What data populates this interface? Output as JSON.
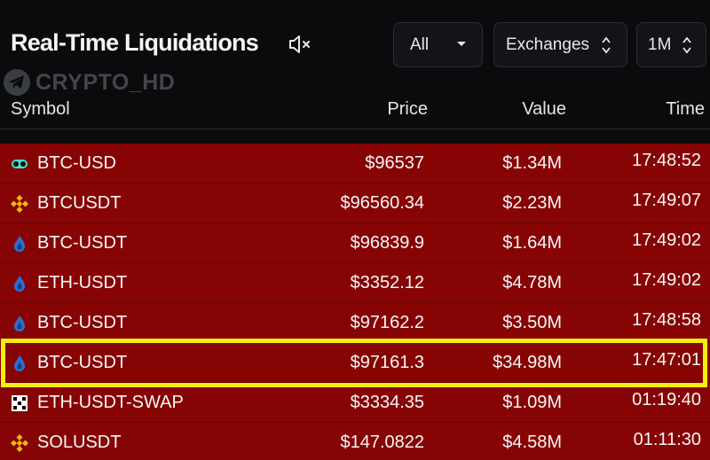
{
  "header": {
    "title": "Real-Time Liquidations",
    "mute_icon": "speaker-muted-icon",
    "watermark": "CRYPTO_HD"
  },
  "filters": {
    "side": {
      "selected": "All",
      "icon": "chevron-down-icon"
    },
    "exchange": {
      "selected": "Exchanges",
      "icon": "up-down-chevron-icon"
    },
    "period": {
      "selected": "1M",
      "icon": "up-down-chevron-icon"
    }
  },
  "columns": {
    "symbol": "Symbol",
    "price": "Price",
    "value": "Value",
    "time": "Time"
  },
  "colors": {
    "row_bg": "#870404",
    "highlight": "#f4ee14",
    "background": "#0b0b0d"
  },
  "rows": [
    {
      "icon": "bitmex-icon",
      "symbol": "BTC-USD",
      "price": "$96537",
      "value": "$1.34M",
      "time": "17:48:52"
    },
    {
      "icon": "binance-icon",
      "symbol": "BTCUSDT",
      "price": "$96560.34",
      "value": "$2.23M",
      "time": "17:49:07"
    },
    {
      "icon": "huobi-icon",
      "symbol": "BTC-USDT",
      "price": "$96839.9",
      "value": "$1.64M",
      "time": "17:49:02"
    },
    {
      "icon": "huobi-icon",
      "symbol": "ETH-USDT",
      "price": "$3352.12",
      "value": "$4.78M",
      "time": "17:49:02"
    },
    {
      "icon": "huobi-icon",
      "symbol": "BTC-USDT",
      "price": "$97162.2",
      "value": "$3.50M",
      "time": "17:48:58"
    },
    {
      "icon": "huobi-icon",
      "symbol": "BTC-USDT",
      "price": "$97161.3",
      "value": "$34.98M",
      "time": "17:47:01"
    },
    {
      "icon": "okx-icon",
      "symbol": "ETH-USDT-SWAP",
      "price": "$3334.35",
      "value": "$1.09M",
      "time": "01:19:40"
    },
    {
      "icon": "binance-icon",
      "symbol": "SOLUSDT",
      "price": "$147.0822",
      "value": "$4.58M",
      "time": "01:11:30"
    }
  ]
}
